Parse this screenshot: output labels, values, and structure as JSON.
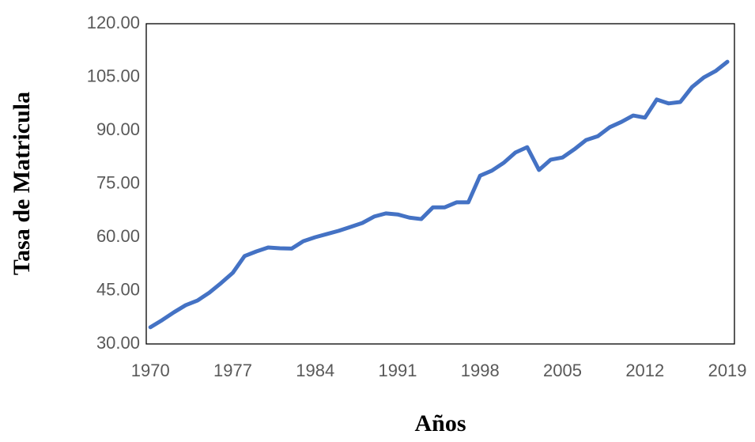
{
  "chart_data": {
    "type": "line",
    "xlabel": "Años",
    "ylabel": "Tasa de Matricula",
    "x": [
      1970,
      1971,
      1972,
      1973,
      1974,
      1975,
      1976,
      1977,
      1978,
      1979,
      1980,
      1981,
      1982,
      1983,
      1984,
      1985,
      1986,
      1987,
      1988,
      1989,
      1990,
      1991,
      1992,
      1993,
      1994,
      1995,
      1996,
      1997,
      1998,
      1999,
      2000,
      2001,
      2002,
      2003,
      2004,
      2005,
      2006,
      2007,
      2008,
      2009,
      2010,
      2011,
      2012,
      2013,
      2014,
      2015,
      2016,
      2017,
      2018,
      2019
    ],
    "series": [
      {
        "name": "Tasa de Matricula",
        "color": "#4472c4",
        "values": [
          34.7,
          36.7,
          38.9,
          40.9,
          42.2,
          44.4,
          47.1,
          50.0,
          54.7,
          56.0,
          57.1,
          56.9,
          56.8,
          58.9,
          60.0,
          60.9,
          61.8,
          62.9,
          64.0,
          65.8,
          66.7,
          66.4,
          65.5,
          65.1,
          68.4,
          68.4,
          69.8,
          69.8,
          77.3,
          78.7,
          80.9,
          83.8,
          85.3,
          78.9,
          81.8,
          82.4,
          84.7,
          87.3,
          88.4,
          90.9,
          92.4,
          94.2,
          93.6,
          98.7,
          97.6,
          98.0,
          102.2,
          104.9,
          106.7,
          109.3
        ]
      }
    ],
    "xlim": [
      1969.65,
      2019.6
    ],
    "xticks": [
      1970,
      1977,
      1984,
      1991,
      1998,
      2005,
      2012,
      2019
    ],
    "ylim": [
      30,
      120
    ],
    "yticks": [
      {
        "value": 30,
        "label": "30.00"
      },
      {
        "value": 45,
        "label": "45.00"
      },
      {
        "value": 60,
        "label": "60.00"
      },
      {
        "value": 75,
        "label": "75.00"
      },
      {
        "value": 90,
        "label": "90.00"
      },
      {
        "value": 105,
        "label": "105.00"
      },
      {
        "value": 120,
        "label": "120.00"
      }
    ],
    "grid": false
  }
}
